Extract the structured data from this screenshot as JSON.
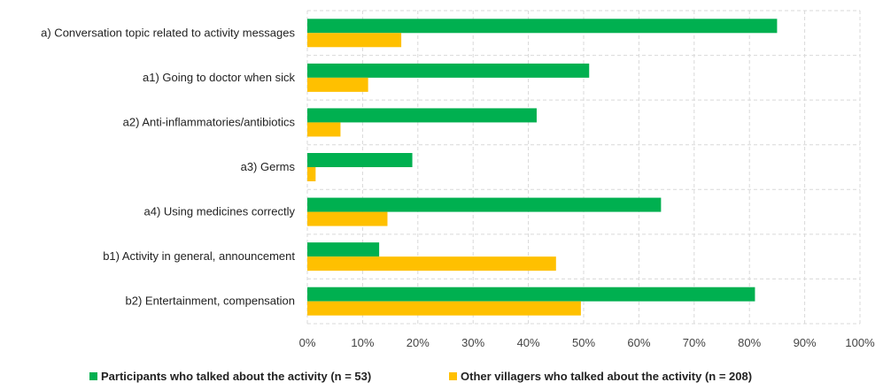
{
  "chart_data": {
    "type": "bar",
    "orientation": "horizontal",
    "categories": [
      "a) Conversation topic related to activity messages",
      "a1) Going to doctor when sick",
      "a2) Anti-inflammatories/antibiotics",
      "a3) Germs",
      "a4) Using medicines correctly",
      "b1) Activity in general, announcement",
      "b2) Entertainment, compensation"
    ],
    "series": [
      {
        "name": "Participants who talked about the activity (n = 53)",
        "color": "#00b050",
        "values": [
          85,
          51,
          41.5,
          19,
          64,
          13,
          81
        ]
      },
      {
        "name": "Other villagers who talked about the activity (n = 208)",
        "color": "#ffc000",
        "values": [
          17,
          11,
          6,
          1.5,
          14.5,
          45,
          49.5
        ]
      }
    ],
    "xlim": [
      0,
      100
    ],
    "xticks": [
      0,
      10,
      20,
      30,
      40,
      50,
      60,
      70,
      80,
      90,
      100
    ],
    "xtick_labels": [
      "0%",
      "10%",
      "20%",
      "30%",
      "40%",
      "50%",
      "60%",
      "70%",
      "80%",
      "90%",
      "100%"
    ],
    "grid": true,
    "legend_position": "bottom",
    "title": "",
    "xlabel": "",
    "ylabel": ""
  }
}
